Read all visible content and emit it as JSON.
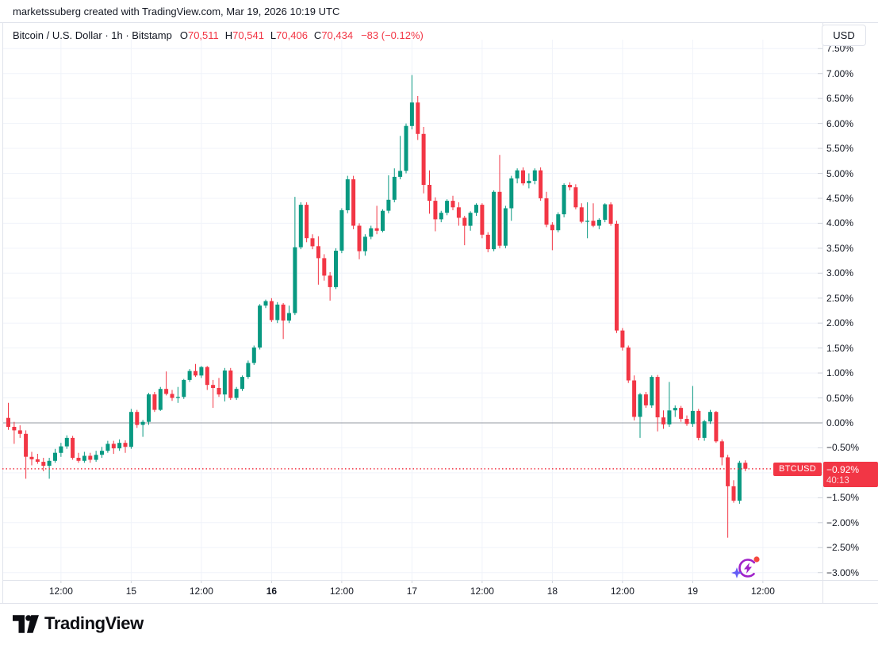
{
  "attribution": "marketssuberg created with TradingView.com, Mar 19, 2026 10:19 UTC",
  "legend": {
    "title": "Bitcoin / U.S. Dollar · 1h · Bitstamp",
    "o_label": "O",
    "o": "70,511",
    "h_label": "H",
    "h": "70,541",
    "l_label": "L",
    "l": "70,406",
    "c_label": "C",
    "c": "70,434",
    "change": "−83 (−0.12%)"
  },
  "currency_button": "USD",
  "price_label": {
    "symbol": "BTCUSD",
    "percent": "−0.92%",
    "countdown": "40:13",
    "value": -0.92
  },
  "footer": {
    "brand": "TradingView"
  },
  "colors": {
    "up": "#089981",
    "down": "#f23645",
    "grid": "#f0f3fa",
    "zero_line": "#9598a1",
    "border": "#e0e3eb",
    "text": "#131722",
    "accent_red": "#f23645",
    "spark_purple": "#a021c9",
    "spark_dot_red": "#f5483f",
    "spark_star_violet": "#645cf6"
  },
  "x_axis": {
    "ticks": [
      {
        "label": "12:00",
        "hour": 12,
        "bold": false
      },
      {
        "label": "15",
        "hour": 24,
        "bold": false
      },
      {
        "label": "12:00",
        "hour": 36,
        "bold": false
      },
      {
        "label": "16",
        "hour": 48,
        "bold": true
      },
      {
        "label": "12:00",
        "hour": 60,
        "bold": false
      },
      {
        "label": "17",
        "hour": 72,
        "bold": false
      },
      {
        "label": "12:00",
        "hour": 84,
        "bold": false
      },
      {
        "label": "18",
        "hour": 96,
        "bold": false
      },
      {
        "label": "12:00",
        "hour": 108,
        "bold": false
      },
      {
        "label": "19",
        "hour": 120,
        "bold": false
      },
      {
        "label": "12:00",
        "hour": 132,
        "bold": false
      }
    ]
  },
  "y_axis": {
    "min": -3.0,
    "max": 7.5,
    "step": 0.5,
    "unit": "%"
  },
  "chart_data": {
    "type": "candlestick",
    "title": "Bitcoin / U.S. Dollar",
    "symbol": "BTCUSD",
    "exchange": "Bitstamp",
    "interval": "1h",
    "scale": "percent-change",
    "y_range": [
      -3.0,
      7.5
    ],
    "grid": true,
    "start_hour_offset": 3,
    "current_percent": -0.92,
    "last_bar": {
      "open": 70511,
      "high": 70541,
      "low": 70406,
      "close": 70434,
      "change": -83,
      "change_percent": -0.12
    },
    "candles": [
      [
        0.1,
        0.4,
        -0.14,
        -0.08
      ],
      [
        -0.08,
        0.02,
        -0.42,
        -0.15
      ],
      [
        -0.15,
        -0.05,
        -0.3,
        -0.22
      ],
      [
        -0.22,
        -0.15,
        -1.12,
        -0.68
      ],
      [
        -0.68,
        -0.58,
        -0.85,
        -0.73
      ],
      [
        -0.73,
        -0.62,
        -0.82,
        -0.78
      ],
      [
        -0.78,
        -0.7,
        -0.97,
        -0.86
      ],
      [
        -0.86,
        -0.7,
        -1.12,
        -0.76
      ],
      [
        -0.76,
        -0.52,
        -0.8,
        -0.6
      ],
      [
        -0.6,
        -0.4,
        -0.68,
        -0.47
      ],
      [
        -0.47,
        -0.25,
        -0.52,
        -0.3
      ],
      [
        -0.3,
        -0.26,
        -0.74,
        -0.7
      ],
      [
        -0.7,
        -0.6,
        -0.8,
        -0.76
      ],
      [
        -0.76,
        -0.58,
        -0.8,
        -0.66
      ],
      [
        -0.66,
        -0.6,
        -0.8,
        -0.74
      ],
      [
        -0.74,
        -0.56,
        -0.78,
        -0.64
      ],
      [
        -0.64,
        -0.48,
        -0.7,
        -0.56
      ],
      [
        -0.56,
        -0.36,
        -0.6,
        -0.42
      ],
      [
        -0.42,
        -0.36,
        -0.62,
        -0.51
      ],
      [
        -0.51,
        -0.33,
        -0.56,
        -0.4
      ],
      [
        -0.4,
        -0.35,
        -0.6,
        -0.48
      ],
      [
        -0.48,
        0.28,
        -0.52,
        0.22
      ],
      [
        0.22,
        0.26,
        -0.1,
        -0.04
      ],
      [
        -0.04,
        0.06,
        -0.28,
        0.02
      ],
      [
        0.02,
        0.6,
        -0.04,
        0.57
      ],
      [
        0.57,
        0.62,
        0.22,
        0.26
      ],
      [
        0.26,
        0.72,
        0.24,
        0.68
      ],
      [
        0.68,
        1.03,
        0.55,
        0.58
      ],
      [
        0.58,
        0.66,
        0.44,
        0.5
      ],
      [
        0.5,
        0.72,
        0.4,
        0.52
      ],
      [
        0.52,
        0.88,
        0.48,
        0.86
      ],
      [
        0.86,
        1.08,
        0.82,
        1.04
      ],
      [
        1.04,
        1.18,
        0.92,
        0.95
      ],
      [
        0.95,
        1.14,
        0.9,
        1.12
      ],
      [
        1.12,
        1.14,
        0.66,
        0.76
      ],
      [
        0.76,
        0.86,
        0.3,
        0.7
      ],
      [
        0.7,
        0.9,
        0.52,
        0.57
      ],
      [
        0.57,
        1.1,
        0.43,
        1.05
      ],
      [
        1.05,
        1.1,
        0.46,
        0.5
      ],
      [
        0.5,
        0.72,
        0.46,
        0.68
      ],
      [
        0.68,
        0.95,
        0.64,
        0.92
      ],
      [
        0.92,
        1.25,
        0.88,
        1.2
      ],
      [
        1.2,
        1.55,
        1.16,
        1.51
      ],
      [
        1.51,
        2.38,
        1.47,
        2.35
      ],
      [
        2.35,
        2.47,
        2.3,
        2.44
      ],
      [
        2.44,
        2.5,
        2.02,
        2.06
      ],
      [
        2.06,
        2.42,
        2.0,
        2.37
      ],
      [
        2.37,
        2.4,
        1.68,
        2.05
      ],
      [
        2.05,
        2.35,
        2.0,
        2.2
      ],
      [
        2.2,
        4.53,
        2.16,
        3.52
      ],
      [
        3.52,
        4.42,
        3.48,
        4.37
      ],
      [
        4.37,
        4.42,
        3.62,
        3.7
      ],
      [
        3.7,
        3.78,
        3.48,
        3.54
      ],
      [
        3.54,
        3.74,
        2.77,
        3.3
      ],
      [
        3.3,
        3.38,
        2.85,
        2.95
      ],
      [
        2.95,
        3.02,
        2.45,
        2.72
      ],
      [
        2.72,
        3.5,
        2.68,
        3.45
      ],
      [
        3.45,
        4.3,
        3.4,
        4.26
      ],
      [
        4.26,
        4.95,
        4.2,
        4.88
      ],
      [
        4.88,
        4.95,
        3.88,
        3.95
      ],
      [
        3.95,
        4.0,
        3.28,
        3.44
      ],
      [
        3.44,
        3.78,
        3.35,
        3.73
      ],
      [
        3.73,
        3.95,
        3.68,
        3.9
      ],
      [
        3.9,
        4.35,
        3.78,
        3.85
      ],
      [
        3.85,
        4.28,
        3.82,
        4.25
      ],
      [
        4.25,
        4.96,
        4.2,
        4.47
      ],
      [
        4.47,
        5.1,
        4.42,
        4.93
      ],
      [
        4.93,
        5.75,
        4.88,
        5.05
      ],
      [
        5.05,
        6.0,
        5.0,
        5.95
      ],
      [
        5.95,
        6.97,
        5.88,
        6.42
      ],
      [
        6.42,
        6.55,
        5.67,
        5.79
      ],
      [
        5.79,
        5.93,
        4.6,
        4.77
      ],
      [
        4.77,
        5.06,
        4.19,
        4.45
      ],
      [
        4.45,
        4.52,
        3.84,
        4.08
      ],
      [
        4.08,
        4.25,
        4.02,
        4.21
      ],
      [
        4.21,
        4.48,
        4.16,
        4.45
      ],
      [
        4.45,
        4.55,
        4.26,
        4.32
      ],
      [
        4.32,
        4.42,
        3.95,
        4.11
      ],
      [
        4.11,
        4.15,
        3.56,
        3.95
      ],
      [
        3.95,
        4.24,
        3.85,
        4.21
      ],
      [
        4.21,
        4.4,
        4.15,
        4.37
      ],
      [
        4.37,
        4.4,
        3.7,
        3.77
      ],
      [
        3.77,
        3.82,
        3.42,
        3.48
      ],
      [
        3.48,
        4.66,
        3.44,
        4.63
      ],
      [
        4.63,
        5.37,
        3.5,
        3.55
      ],
      [
        3.55,
        4.35,
        3.5,
        4.3
      ],
      [
        4.3,
        4.95,
        4.05,
        4.9
      ],
      [
        4.9,
        5.1,
        4.8,
        5.06
      ],
      [
        5.06,
        5.12,
        4.76,
        4.8
      ],
      [
        4.8,
        5.0,
        4.7,
        4.85
      ],
      [
        4.85,
        5.1,
        4.78,
        5.06
      ],
      [
        5.06,
        5.12,
        4.45,
        4.5
      ],
      [
        4.5,
        4.63,
        3.92,
        3.97
      ],
      [
        3.97,
        4.02,
        3.46,
        3.86
      ],
      [
        3.86,
        4.22,
        3.82,
        4.18
      ],
      [
        4.18,
        4.8,
        4.12,
        4.77
      ],
      [
        4.77,
        4.82,
        4.66,
        4.72
      ],
      [
        4.72,
        4.78,
        4.28,
        4.32
      ],
      [
        4.32,
        4.4,
        4.0,
        4.03
      ],
      [
        4.03,
        4.42,
        3.7,
        4.05
      ],
      [
        4.05,
        4.4,
        3.92,
        3.95
      ],
      [
        3.95,
        4.1,
        3.88,
        4.07
      ],
      [
        4.07,
        4.4,
        4.02,
        4.38
      ],
      [
        4.38,
        4.42,
        3.95,
        3.99
      ],
      [
        3.99,
        4.05,
        1.8,
        1.85
      ],
      [
        1.85,
        1.9,
        1.45,
        1.51
      ],
      [
        1.51,
        1.55,
        0.8,
        0.85
      ],
      [
        0.85,
        0.95,
        0.05,
        0.12
      ],
      [
        0.12,
        0.6,
        -0.3,
        0.57
      ],
      [
        0.57,
        0.62,
        0.3,
        0.35
      ],
      [
        0.35,
        0.95,
        0.3,
        0.92
      ],
      [
        0.92,
        0.96,
        -0.17,
        0.11
      ],
      [
        0.11,
        0.25,
        -0.12,
        -0.03
      ],
      [
        -0.03,
        0.82,
        -0.08,
        0.25
      ],
      [
        0.25,
        0.35,
        0.12,
        0.3
      ],
      [
        0.3,
        0.34,
        0.02,
        0.08
      ],
      [
        0.08,
        0.15,
        -0.06,
        -0.02
      ],
      [
        -0.02,
        0.74,
        -0.08,
        0.24
      ],
      [
        0.24,
        0.28,
        -0.35,
        -0.3
      ],
      [
        -0.3,
        0.06,
        -0.36,
        0.03
      ],
      [
        0.03,
        0.26,
        -0.02,
        0.22
      ],
      [
        0.22,
        0.24,
        -0.4,
        -0.37
      ],
      [
        -0.37,
        -0.33,
        -0.85,
        -0.69
      ],
      [
        -0.69,
        -0.64,
        -2.3,
        -1.27
      ],
      [
        -1.27,
        -1.15,
        -1.6,
        -1.56
      ],
      [
        -1.56,
        -0.76,
        -1.62,
        -0.8
      ],
      [
        -0.8,
        -0.75,
        -0.97,
        -0.92
      ]
    ]
  }
}
